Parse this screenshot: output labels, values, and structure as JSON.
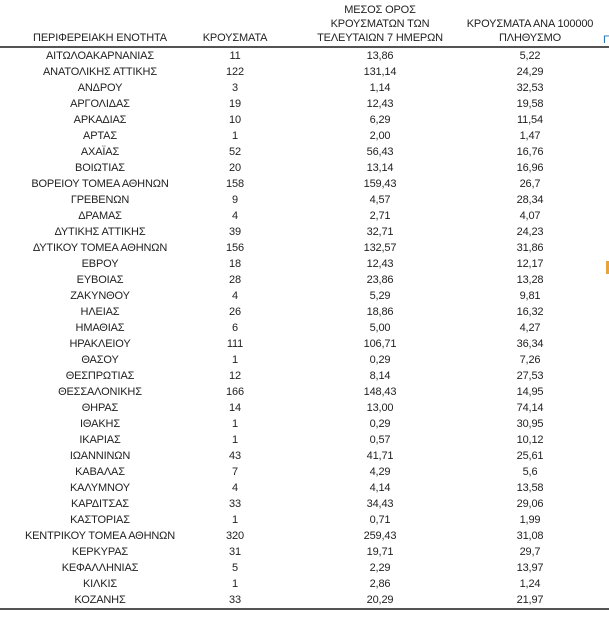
{
  "header": {
    "col1_lines": [
      "ΠΕΡΙΦΕΡΕΙΑΚΗ ΕΝΟΤΗΤΑ"
    ],
    "col2_lines": [
      "ΚΡΟΥΣΜΑΤΑ"
    ],
    "col3_lines": [
      "ΜΕΣΟΣ ΟΡΟΣ",
      "ΚΡΟΥΣΜΑΤΩΝ ΤΩΝ",
      "ΤΕΛΕΥΤΑΙΩΝ 7 ΗΜΕΡΩΝ"
    ],
    "col4_lines": [
      "ΚΡΟΥΣΜΑΤΑ ΑΝΑ 100000",
      "ΠΛΗΘΥΣΜΟ"
    ]
  },
  "edge_fragments": {
    "header_fragment_text": "Π",
    "header_fragment_color": "#1f6fb5",
    "row_fragment_color": "#e9a33c"
  },
  "colors": {
    "text": "#222222",
    "rule": "#545454",
    "background": "#ffffff"
  },
  "chart_data": {
    "type": "table",
    "title": "",
    "columns": [
      "ΠΕΡΙΦΕΡΕΙΑΚΗ ΕΝΟΤΗΤΑ",
      "ΚΡΟΥΣΜΑΤΑ",
      "ΜΕΣΟΣ ΟΡΟΣ ΚΡΟΥΣΜΑΤΩΝ ΤΩΝ ΤΕΛΕΥΤΑΙΩΝ 7 ΗΜΕΡΩΝ",
      "ΚΡΟΥΣΜΑΤΑ ΑΝΑ 100000 ΠΛΗΘΥΣΜΟ"
    ],
    "rows": [
      [
        "ΑΙΤΩΛΟΑΚΑΡΝΑΝΙΑΣ",
        "11",
        "13,86",
        "5,22"
      ],
      [
        "ΑΝΑΤΟΛΙΚΗΣ ΑΤΤΙΚΗΣ",
        "122",
        "131,14",
        "24,29"
      ],
      [
        "ΑΝΔΡΟΥ",
        "3",
        "1,14",
        "32,53"
      ],
      [
        "ΑΡΓΟΛΙΔΑΣ",
        "19",
        "12,43",
        "19,58"
      ],
      [
        "ΑΡΚΑΔΙΑΣ",
        "10",
        "6,29",
        "11,54"
      ],
      [
        "ΑΡΤΑΣ",
        "1",
        "2,00",
        "1,47"
      ],
      [
        "ΑΧΑΪΑΣ",
        "52",
        "56,43",
        "16,76"
      ],
      [
        "ΒΟΙΩΤΙΑΣ",
        "20",
        "13,14",
        "16,96"
      ],
      [
        "ΒΟΡΕΙΟΥ ΤΟΜΕΑ ΑΘΗΝΩΝ",
        "158",
        "159,43",
        "26,7"
      ],
      [
        "ΓΡΕΒΕΝΩΝ",
        "9",
        "4,57",
        "28,34"
      ],
      [
        "ΔΡΑΜΑΣ",
        "4",
        "2,71",
        "4,07"
      ],
      [
        "ΔΥΤΙΚΗΣ ΑΤΤΙΚΗΣ",
        "39",
        "32,71",
        "24,23"
      ],
      [
        "ΔΥΤΙΚΟΥ ΤΟΜΕΑ ΑΘΗΝΩΝ",
        "156",
        "132,57",
        "31,86"
      ],
      [
        "ΕΒΡΟΥ",
        "18",
        "12,43",
        "12,17"
      ],
      [
        "ΕΥΒΟΙΑΣ",
        "28",
        "23,86",
        "13,28"
      ],
      [
        "ΖΑΚΥΝΘΟΥ",
        "4",
        "5,29",
        "9,81"
      ],
      [
        "ΗΛΕΙΑΣ",
        "26",
        "18,86",
        "16,32"
      ],
      [
        "ΗΜΑΘΙΑΣ",
        "6",
        "5,00",
        "4,27"
      ],
      [
        "ΗΡΑΚΛΕΙΟΥ",
        "111",
        "106,71",
        "36,34"
      ],
      [
        "ΘΑΣΟΥ",
        "1",
        "0,29",
        "7,26"
      ],
      [
        "ΘΕΣΠΡΩΤΙΑΣ",
        "12",
        "8,14",
        "27,53"
      ],
      [
        "ΘΕΣΣΑΛΟΝΙΚΗΣ",
        "166",
        "148,43",
        "14,95"
      ],
      [
        "ΘΗΡΑΣ",
        "14",
        "13,00",
        "74,14"
      ],
      [
        "ΙΘΑΚΗΣ",
        "1",
        "0,29",
        "30,95"
      ],
      [
        "ΙΚΑΡΙΑΣ",
        "1",
        "0,57",
        "10,12"
      ],
      [
        "ΙΩΑΝΝΙΝΩΝ",
        "43",
        "41,71",
        "25,61"
      ],
      [
        "ΚΑΒΑΛΑΣ",
        "7",
        "4,29",
        "5,6"
      ],
      [
        "ΚΑΛΥΜΝΟΥ",
        "4",
        "4,14",
        "13,58"
      ],
      [
        "ΚΑΡΔΙΤΣΑΣ",
        "33",
        "34,43",
        "29,06"
      ],
      [
        "ΚΑΣΤΟΡΙΑΣ",
        "1",
        "0,71",
        "1,99"
      ],
      [
        "ΚΕΝΤΡΙΚΟΥ ΤΟΜΕΑ ΑΘΗΝΩΝ",
        "320",
        "259,43",
        "31,08"
      ],
      [
        "ΚΕΡΚΥΡΑΣ",
        "31",
        "19,71",
        "29,7"
      ],
      [
        "ΚΕΦΑΛΛΗΝΙΑΣ",
        "5",
        "2,29",
        "13,97"
      ],
      [
        "ΚΙΛΚΙΣ",
        "1",
        "2,86",
        "1,24"
      ],
      [
        "ΚΟΖΑΝΗΣ",
        "33",
        "20,29",
        "21,97"
      ]
    ]
  }
}
